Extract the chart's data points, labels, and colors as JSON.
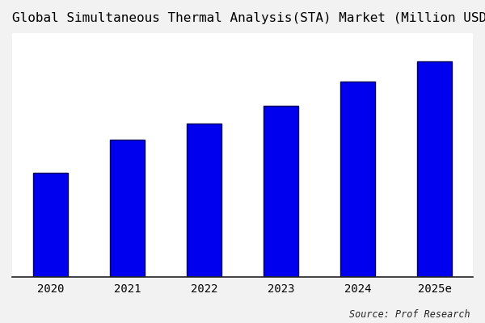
{
  "title": "Global Simultaneous Thermal Analysis(STA) Market (Million USD)",
  "categories": [
    "2020",
    "2021",
    "2022",
    "2023",
    "2024",
    "2025e"
  ],
  "values": [
    100,
    132,
    148,
    165,
    188,
    208
  ],
  "bar_color": "#0000EE",
  "bar_edge_color": "#000055",
  "plot_bg_color": "#ffffff",
  "fig_bg_color": "#f2f2f2",
  "title_fontsize": 11.5,
  "source_text": "Source: Prof Research",
  "ylim": [
    0,
    235
  ],
  "bar_width": 0.45,
  "figsize": [
    6.0,
    4.0
  ],
  "dpi": 100,
  "tick_fontsize": 10
}
